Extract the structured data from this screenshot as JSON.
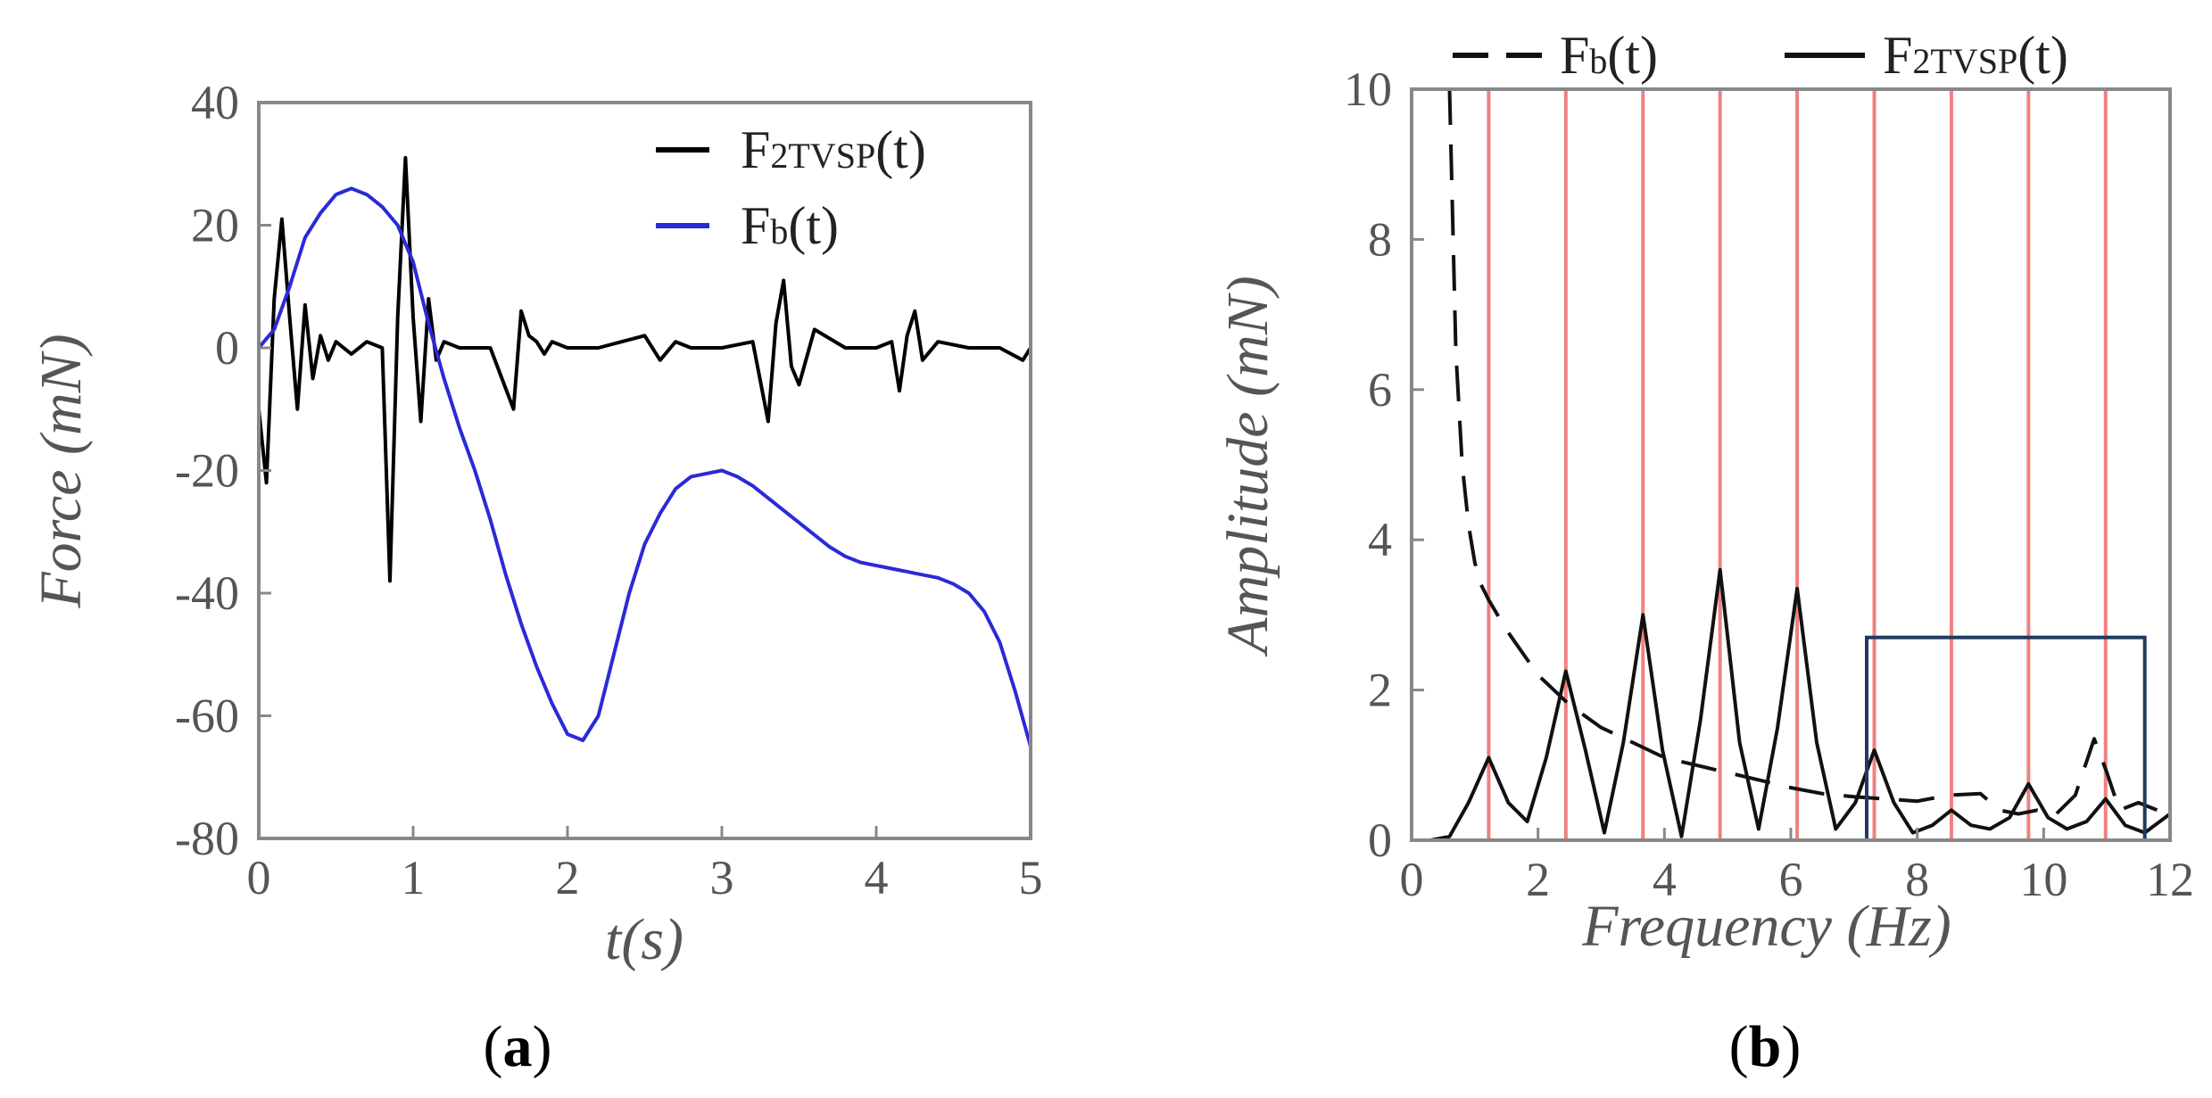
{
  "figure": {
    "panel_a_label": {
      "open": "(",
      "letter": "a",
      "close": ")"
    },
    "panel_b_label": {
      "open": "(",
      "letter": "b",
      "close": ")"
    }
  },
  "chart_data": [
    {
      "type": "line",
      "panel": "a",
      "title": "",
      "xlabel": "t(s)",
      "ylabel": "Force (mN)",
      "xlim": [
        0,
        5
      ],
      "ylim": [
        -80,
        40
      ],
      "xticks": [
        "0",
        "1",
        "2",
        "3",
        "4",
        "5"
      ],
      "yticks": [
        "40",
        "20",
        "0",
        "-20",
        "-40",
        "-60",
        "-80"
      ],
      "legend_position": "top-right",
      "series": [
        {
          "name": "F2TVSP(t)",
          "legend": {
            "main": "F",
            "sub": "2TVSP",
            "tail": "(t)"
          },
          "color": "#000000",
          "x": [
            0,
            0.05,
            0.1,
            0.15,
            0.2,
            0.25,
            0.3,
            0.35,
            0.4,
            0.45,
            0.5,
            0.6,
            0.7,
            0.8,
            0.85,
            0.9,
            0.95,
            1.0,
            1.05,
            1.1,
            1.15,
            1.2,
            1.3,
            1.5,
            1.65,
            1.7,
            1.75,
            1.8,
            1.85,
            1.9,
            2.0,
            2.2,
            2.5,
            2.6,
            2.7,
            2.8,
            3.0,
            3.2,
            3.3,
            3.35,
            3.4,
            3.45,
            3.5,
            3.6,
            3.8,
            4.0,
            4.1,
            4.15,
            4.2,
            4.25,
            4.3,
            4.4,
            4.6,
            4.8,
            4.95,
            5.0
          ],
          "y": [
            -10,
            -22,
            8,
            21,
            5,
            -10,
            7,
            -5,
            2,
            -2,
            1,
            -1,
            1,
            0,
            -38,
            5,
            31,
            5,
            -12,
            8,
            -2,
            1,
            0,
            0,
            -10,
            6,
            2,
            1,
            -1,
            1,
            0,
            0,
            2,
            -2,
            1,
            0,
            0,
            1,
            -12,
            4,
            11,
            -3,
            -6,
            3,
            0,
            0,
            1,
            -7,
            2,
            6,
            -2,
            1,
            0,
            0,
            -2,
            0
          ]
        },
        {
          "name": "Fb(t)",
          "legend": {
            "main": "F",
            "sub": "b",
            "tail": "(t)"
          },
          "color": "#2a2ad8",
          "x": [
            0,
            0.1,
            0.2,
            0.3,
            0.4,
            0.5,
            0.6,
            0.7,
            0.8,
            0.9,
            1.0,
            1.1,
            1.2,
            1.3,
            1.4,
            1.5,
            1.6,
            1.7,
            1.8,
            1.9,
            2.0,
            2.1,
            2.2,
            2.3,
            2.4,
            2.5,
            2.6,
            2.7,
            2.8,
            2.9,
            3.0,
            3.1,
            3.2,
            3.3,
            3.4,
            3.5,
            3.6,
            3.7,
            3.8,
            3.9,
            4.0,
            4.1,
            4.2,
            4.3,
            4.4,
            4.5,
            4.6,
            4.7,
            4.8,
            4.9,
            5.0
          ],
          "y": [
            0,
            3,
            10,
            18,
            22,
            25,
            26,
            25,
            23,
            20,
            14,
            4,
            -5,
            -13,
            -20,
            -28,
            -37,
            -45,
            -52,
            -58,
            -63,
            -64,
            -60,
            -50,
            -40,
            -32,
            -27,
            -23,
            -21,
            -20.5,
            -20,
            -21,
            -22.5,
            -24.5,
            -26.5,
            -28.5,
            -30.5,
            -32.5,
            -34,
            -35,
            -35.5,
            -36,
            -36.5,
            -37,
            -37.5,
            -38.5,
            -40,
            -43,
            -48,
            -56,
            -65
          ]
        }
      ]
    },
    {
      "type": "line",
      "panel": "b",
      "title": "",
      "xlabel": "Frequency (Hz)",
      "ylabel": "Amplitude (mN)",
      "xlim": [
        0,
        12
      ],
      "ylim": [
        0,
        10
      ],
      "xticks": [
        "0",
        "2",
        "4",
        "6",
        "8",
        "10",
        "12"
      ],
      "yticks": [
        "10",
        "8",
        "6",
        "4",
        "2",
        "0"
      ],
      "legend_position": "top-outside",
      "harmonic_lines": {
        "color": "#f08080",
        "x": [
          1.22,
          2.44,
          3.66,
          4.88,
          6.1,
          7.32,
          8.54,
          9.76,
          10.98
        ]
      },
      "highlight_box": {
        "x": [
          7.2,
          11.6
        ],
        "y": [
          0,
          2.7
        ],
        "color": "#1f3a5f"
      },
      "series": [
        {
          "name": "Fb(t)",
          "legend": {
            "main": "F",
            "sub": "b",
            "tail": "(t)"
          },
          "style": "dashed",
          "color": "#111111",
          "x": [
            0.6,
            0.7,
            0.8,
            0.9,
            1.0,
            1.1,
            1.22,
            1.5,
            2.0,
            2.5,
            3.0,
            3.5,
            4.0,
            4.5,
            5.0,
            5.5,
            6.0,
            6.5,
            7.0,
            7.5,
            8.0,
            8.5,
            9.0,
            9.3,
            9.6,
            9.9,
            10.2,
            10.5,
            10.8,
            11.0,
            11.2,
            11.5,
            11.8,
            12.0
          ],
          "y": [
            10,
            6.5,
            5.0,
            4.2,
            3.7,
            3.4,
            3.2,
            2.8,
            2.2,
            1.8,
            1.5,
            1.3,
            1.1,
            1.0,
            0.9,
            0.8,
            0.7,
            0.62,
            0.58,
            0.55,
            0.52,
            0.6,
            0.62,
            0.4,
            0.35,
            0.4,
            0.35,
            0.6,
            1.35,
            0.9,
            0.4,
            0.5,
            0.4,
            0.5
          ]
        },
        {
          "name": "F2TVSP(t)",
          "legend": {
            "main": "F",
            "sub": "2TVSP",
            "tail": "(t)"
          },
          "style": "solid",
          "color": "#111111",
          "x": [
            0,
            0.3,
            0.6,
            0.9,
            1.22,
            1.53,
            1.83,
            2.13,
            2.44,
            2.75,
            3.05,
            3.35,
            3.66,
            3.97,
            4.27,
            4.57,
            4.88,
            5.19,
            5.49,
            5.79,
            6.1,
            6.41,
            6.71,
            7.02,
            7.32,
            7.63,
            7.93,
            8.24,
            8.54,
            8.85,
            9.15,
            9.46,
            9.76,
            10.07,
            10.37,
            10.68,
            10.98,
            11.29,
            11.6,
            12.0
          ],
          "y": [
            0,
            0,
            0.05,
            0.5,
            1.1,
            0.5,
            0.25,
            1.1,
            2.25,
            1.2,
            0.1,
            1.3,
            3.0,
            1.2,
            0.05,
            1.6,
            3.6,
            1.3,
            0.15,
            1.5,
            3.35,
            1.3,
            0.15,
            0.5,
            1.2,
            0.5,
            0.1,
            0.2,
            0.4,
            0.2,
            0.15,
            0.3,
            0.75,
            0.3,
            0.15,
            0.25,
            0.55,
            0.2,
            0.1,
            0.35
          ]
        }
      ]
    }
  ]
}
